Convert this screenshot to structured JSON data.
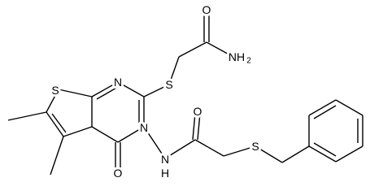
{
  "atoms": [
    {
      "label": "O"
    },
    {
      "label": "NH",
      "subscript": "2"
    },
    {
      "label": "S"
    },
    {
      "label": "N"
    },
    {
      "label": "S"
    },
    {
      "label": "N"
    },
    {
      "label": "O"
    },
    {
      "label": "N",
      "hydrogen": "H"
    },
    {
      "label": "O"
    },
    {
      "label": "S"
    }
  ]
}
